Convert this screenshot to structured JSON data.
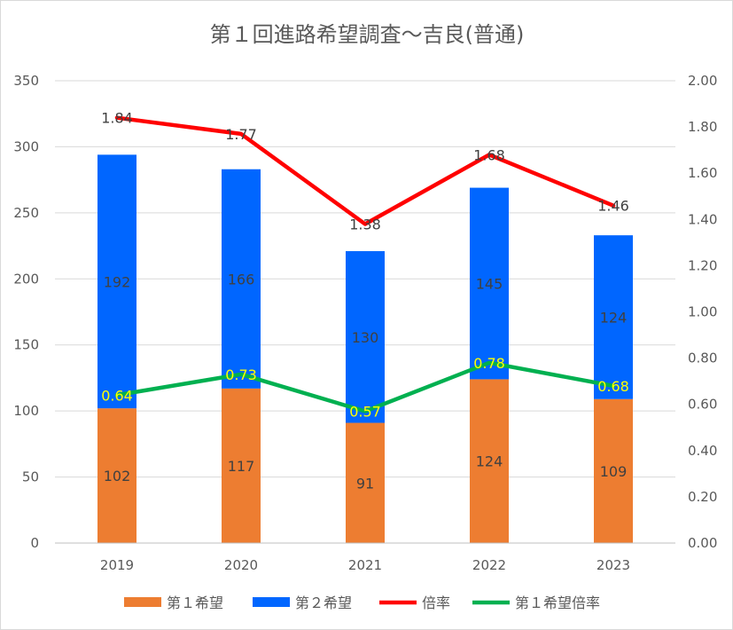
{
  "chart_data": {
    "type": "bar",
    "title": "第１回進路希望調査～吉良(普通)",
    "categories": [
      "2019",
      "2020",
      "2021",
      "2022",
      "2023"
    ],
    "series": [
      {
        "name": "第１希望",
        "kind": "bar",
        "axis": "left",
        "color": "#ed7d31",
        "values": [
          102,
          117,
          91,
          124,
          109
        ]
      },
      {
        "name": "第２希望",
        "kind": "bar",
        "axis": "left",
        "color": "#0066ff",
        "values": [
          192,
          166,
          130,
          145,
          124
        ]
      },
      {
        "name": "倍率",
        "kind": "line",
        "axis": "right",
        "color": "#ff0000",
        "values": [
          1.84,
          1.77,
          1.38,
          1.68,
          1.46
        ]
      },
      {
        "name": "第１希望倍率",
        "kind": "line",
        "axis": "right",
        "color": "#00b050",
        "values": [
          0.64,
          0.73,
          0.57,
          0.78,
          0.68
        ]
      }
    ],
    "y_left": {
      "min": 0,
      "max": 350,
      "ticks": [
        "0",
        "50",
        "100",
        "150",
        "200",
        "250",
        "300",
        "350"
      ]
    },
    "y_right": {
      "min": 0,
      "max": 2,
      "ticks": [
        "0.00",
        "0.20",
        "0.40",
        "0.60",
        "0.80",
        "1.00",
        "1.20",
        "1.40",
        "1.60",
        "1.80",
        "2.00"
      ]
    },
    "grid": true,
    "legend": "bottom"
  }
}
